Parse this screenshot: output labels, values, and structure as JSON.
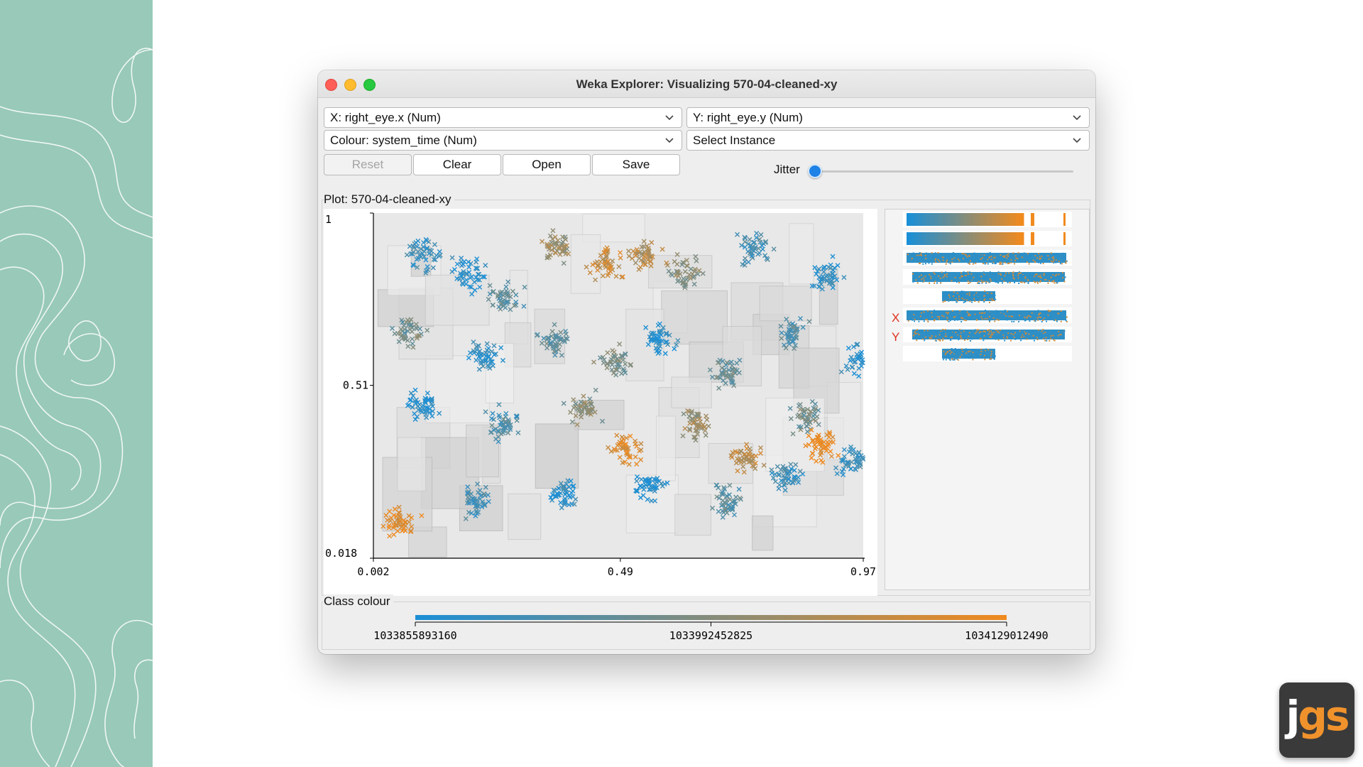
{
  "window": {
    "title": "Weka Explorer: Visualizing 570-04-cleaned-xy"
  },
  "controls": {
    "x_axis": "X: right_eye.x (Num)",
    "y_axis": "Y: right_eye.y (Num)",
    "colour": "Colour: system_time (Num)",
    "instance": "Select Instance",
    "buttons": {
      "reset": "Reset",
      "clear": "Clear",
      "open": "Open",
      "save": "Save"
    },
    "reset_enabled": false,
    "jitter_label": "Jitter",
    "jitter_value": 0
  },
  "plot": {
    "label": "Plot: 570-04-cleaned-xy",
    "point_marker": "x"
  },
  "chart_data": {
    "type": "scatter",
    "x_ticks": [
      "0.002",
      "0.49",
      "0.97"
    ],
    "y_ticks": [
      "1",
      "0.51",
      "0.018"
    ],
    "xlim": [
      0.002,
      0.97
    ],
    "ylim": [
      0.018,
      1
    ],
    "color_by": "system_time",
    "color_ticks": [
      "1033855893160",
      "1033992452825",
      "1034129012490"
    ],
    "color_range": [
      1033855893160,
      1034129012490
    ],
    "color_low": "#1b8fd6",
    "color_high": "#f08a1e",
    "clusters": [
      {
        "x": 0.1,
        "y": 0.88,
        "t": 0.15
      },
      {
        "x": 0.19,
        "y": 0.83,
        "t": 0.05
      },
      {
        "x": 0.26,
        "y": 0.76,
        "t": 0.3
      },
      {
        "x": 0.36,
        "y": 0.9,
        "t": 0.6
      },
      {
        "x": 0.46,
        "y": 0.86,
        "t": 0.8
      },
      {
        "x": 0.54,
        "y": 0.88,
        "t": 0.7
      },
      {
        "x": 0.62,
        "y": 0.83,
        "t": 0.5
      },
      {
        "x": 0.75,
        "y": 0.9,
        "t": 0.2
      },
      {
        "x": 0.9,
        "y": 0.82,
        "t": 0.1
      },
      {
        "x": 0.07,
        "y": 0.66,
        "t": 0.4
      },
      {
        "x": 0.22,
        "y": 0.6,
        "t": 0.1
      },
      {
        "x": 0.36,
        "y": 0.63,
        "t": 0.3
      },
      {
        "x": 0.48,
        "y": 0.58,
        "t": 0.45
      },
      {
        "x": 0.57,
        "y": 0.64,
        "t": 0.05
      },
      {
        "x": 0.7,
        "y": 0.55,
        "t": 0.35
      },
      {
        "x": 0.83,
        "y": 0.66,
        "t": 0.25
      },
      {
        "x": 0.96,
        "y": 0.58,
        "t": 0.05
      },
      {
        "x": 0.1,
        "y": 0.45,
        "t": 0.05
      },
      {
        "x": 0.26,
        "y": 0.4,
        "t": 0.25
      },
      {
        "x": 0.42,
        "y": 0.44,
        "t": 0.5
      },
      {
        "x": 0.5,
        "y": 0.33,
        "t": 0.9
      },
      {
        "x": 0.64,
        "y": 0.4,
        "t": 0.6
      },
      {
        "x": 0.74,
        "y": 0.3,
        "t": 0.75
      },
      {
        "x": 0.86,
        "y": 0.42,
        "t": 0.4
      },
      {
        "x": 0.95,
        "y": 0.3,
        "t": 0.15
      },
      {
        "x": 0.06,
        "y": 0.12,
        "t": 0.95
      },
      {
        "x": 0.2,
        "y": 0.18,
        "t": 0.2
      },
      {
        "x": 0.38,
        "y": 0.2,
        "t": 0.1
      },
      {
        "x": 0.55,
        "y": 0.22,
        "t": 0.05
      },
      {
        "x": 0.7,
        "y": 0.18,
        "t": 0.3
      },
      {
        "x": 0.82,
        "y": 0.25,
        "t": 0.15
      },
      {
        "x": 0.89,
        "y": 0.34,
        "t": 1.0
      }
    ]
  },
  "attribute_panel": {
    "x_marker": "X",
    "y_marker": "Y",
    "bars": 8
  },
  "class_colour": {
    "label": "Class colour"
  }
}
